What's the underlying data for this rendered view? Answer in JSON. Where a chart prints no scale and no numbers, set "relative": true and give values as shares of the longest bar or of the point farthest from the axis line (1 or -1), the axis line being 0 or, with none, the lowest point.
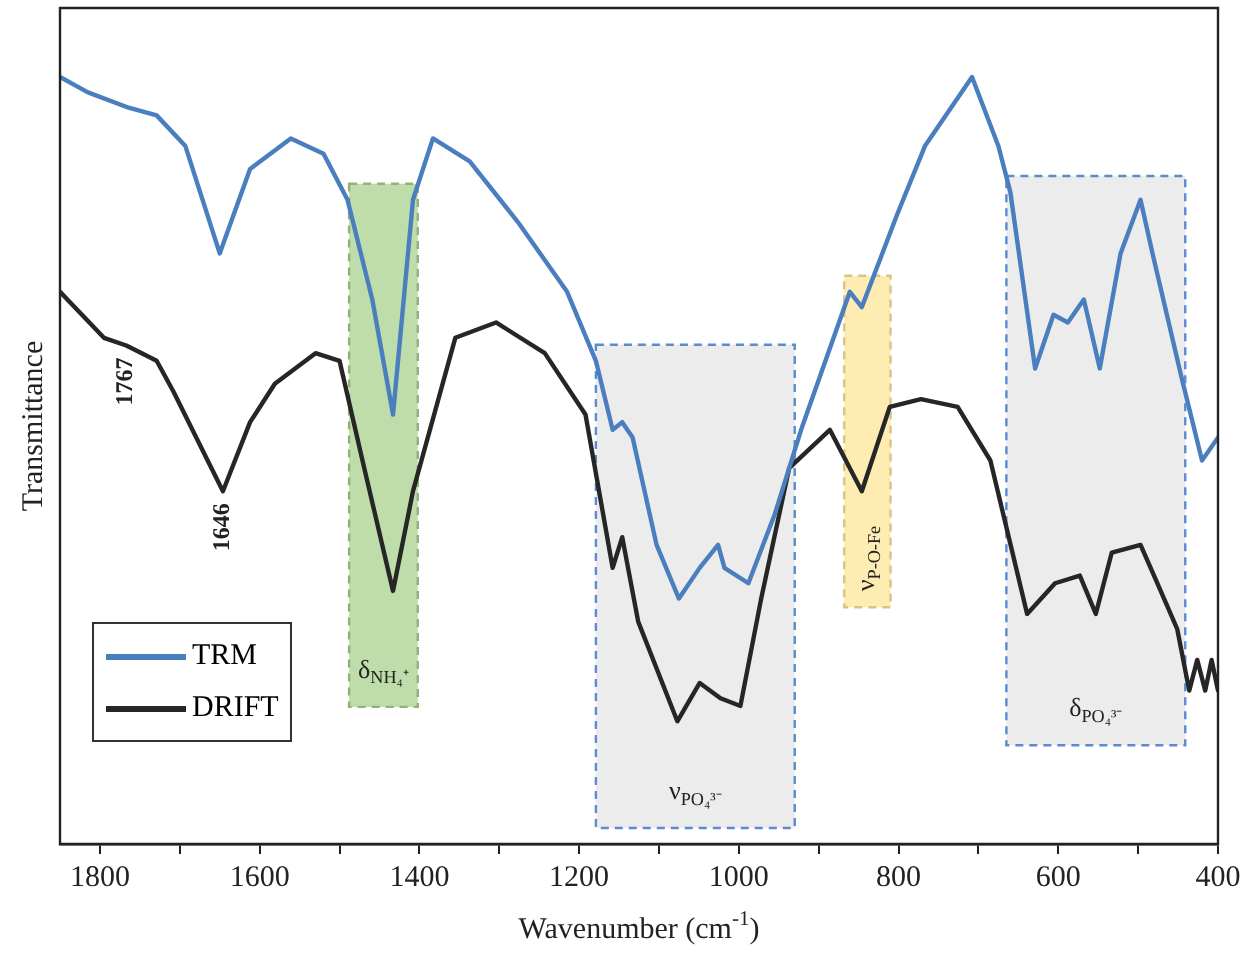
{
  "chart_data": {
    "type": "line",
    "relative": true,
    "xlabel": "Wavenumber (cm$^{-1}$)",
    "ylabel": "Transmittance",
    "xlim": [
      1850,
      400
    ],
    "xticks": [
      1800,
      {
        "value": 1700,
        "label": null
      },
      1600,
      {
        "value": 1500,
        "label": null
      },
      1400,
      {
        "value": 1300,
        "label": null
      },
      1200,
      {
        "value": 1100,
        "label": null
      },
      1000,
      {
        "value": 900,
        "label": null
      },
      800,
      {
        "value": 700,
        "label": null
      },
      600,
      {
        "value": 500,
        "label": null
      },
      400
    ],
    "grid": false,
    "legend": "bottom left",
    "marker": "none",
    "line_style": "solid",
    "series": [
      {
        "name": "TRM",
        "color": "#4a7ebf",
        "x": [
          1850,
          1815,
          1764,
          1729,
          1693,
          1650,
          1612,
          1561,
          1520,
          1490,
          1459,
          1433,
          1408,
          1383,
          1337,
          1276,
          1215,
          1179,
          1158,
          1146,
          1133,
          1103,
          1075,
          1049,
          1026,
          1018,
          988,
          955,
          922,
          861,
          846,
          802,
          767,
          708,
          675,
          660,
          629,
          606,
          588,
          568,
          548,
          522,
          497,
          482,
          446,
          420,
          400
        ],
        "values": [
          1.0,
          0.98,
          0.96,
          0.95,
          0.91,
          0.77,
          0.88,
          0.92,
          0.9,
          0.84,
          0.71,
          0.56,
          0.84,
          0.92,
          0.89,
          0.81,
          0.72,
          0.63,
          0.54,
          0.55,
          0.53,
          0.39,
          0.32,
          0.36,
          0.39,
          0.36,
          0.34,
          0.43,
          0.54,
          0.72,
          0.7,
          0.82,
          0.91,
          1.0,
          0.91,
          0.85,
          0.62,
          0.69,
          0.68,
          0.71,
          0.62,
          0.77,
          0.84,
          0.77,
          0.61,
          0.5,
          0.53
        ]
      },
      {
        "name": "DRIFT",
        "color": "#262626",
        "x": [
          1850,
          1795,
          1767,
          1729,
          1708,
          1646,
          1612,
          1581,
          1530,
          1500,
          1469,
          1433,
          1408,
          1355,
          1304,
          1243,
          1192,
          1158,
          1146,
          1126,
          1077,
          1049,
          1023,
          998,
          972,
          937,
          886,
          846,
          811,
          772,
          726,
          685,
          639,
          604,
          573,
          553,
          533,
          497,
          476,
          451,
          436,
          426,
          416,
          408,
          400
        ],
        "values": [
          0.72,
          0.66,
          0.65,
          0.63,
          0.59,
          0.46,
          0.55,
          0.6,
          0.64,
          0.63,
          0.49,
          0.33,
          0.46,
          0.66,
          0.68,
          0.64,
          0.56,
          0.36,
          0.4,
          0.29,
          0.16,
          0.21,
          0.19,
          0.18,
          0.32,
          0.49,
          0.54,
          0.46,
          0.57,
          0.58,
          0.57,
          0.5,
          0.3,
          0.34,
          0.35,
          0.3,
          0.38,
          0.39,
          0.34,
          0.28,
          0.2,
          0.24,
          0.2,
          0.24,
          0.2
        ]
      }
    ],
    "bands": [
      {
        "axis": "x",
        "from": 1488,
        "to": 1402,
        "label": "δ$_{NH₄⁺}$",
        "color": "#a9d18e"
      },
      {
        "axis": "x",
        "from": 1179,
        "to": 930,
        "label": "ν$_{PO₄³⁻}$",
        "color": "#e7e6e6"
      },
      {
        "axis": "x",
        "from": 868,
        "to": 810,
        "label": "ν$_{P-O-Fe}$",
        "color": "#ffe699"
      },
      {
        "axis": "x",
        "from": 665,
        "to": 441,
        "label": "δ$_{PO₄³⁻}$",
        "color": "#e7e6e6"
      }
    ],
    "annotations": [
      {
        "text": "1767",
        "x": 1767,
        "y": 0.65
      },
      {
        "text": "1646",
        "x": 1646,
        "y": 0.46
      }
    ]
  }
}
